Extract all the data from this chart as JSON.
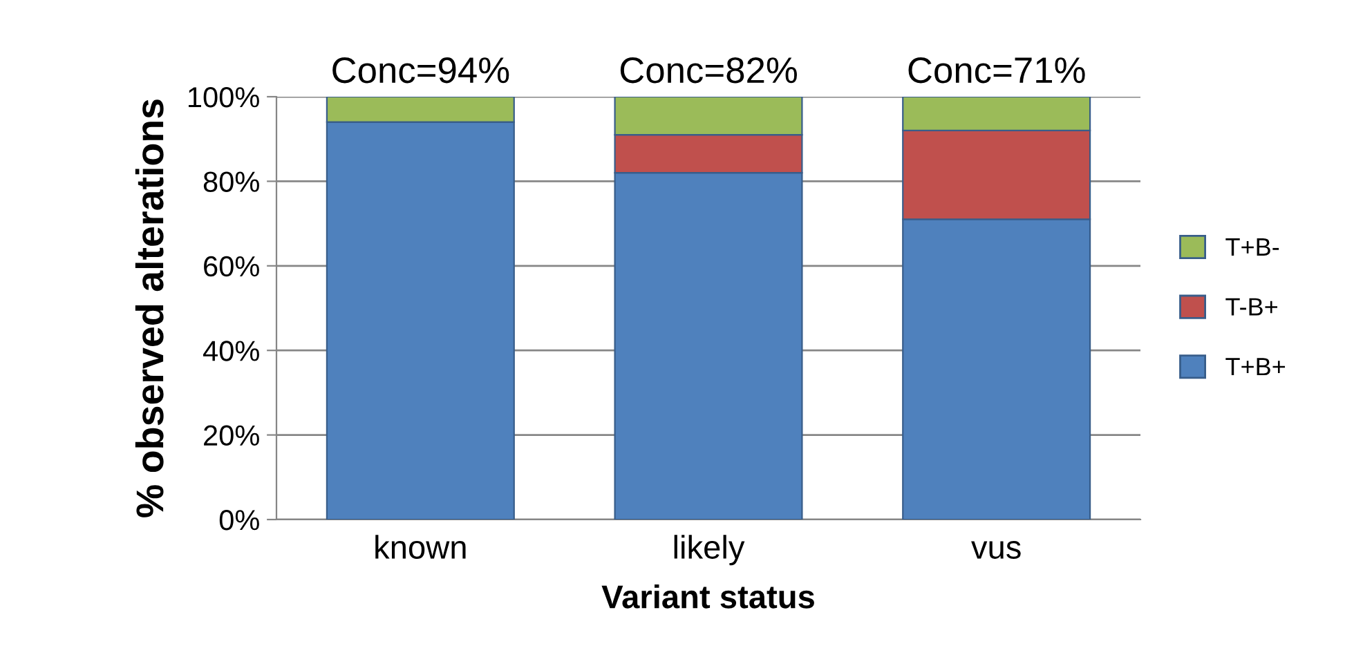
{
  "chart_data": {
    "type": "bar",
    "stacked": true,
    "xlabel": "Variant status",
    "ylabel": "% observed alterations",
    "categories": [
      "known",
      "likely",
      "vus"
    ],
    "series": [
      {
        "name": "T+B+",
        "color": "#4f81bd",
        "values": [
          94,
          82,
          71
        ]
      },
      {
        "name": "T-B+",
        "color": "#c0504d",
        "values": [
          0,
          9,
          21
        ]
      },
      {
        "name": "T+B-",
        "color": "#9bbb59",
        "values": [
          6,
          9,
          8
        ]
      }
    ],
    "annotations": [
      "Conc=94%",
      "Conc=82%",
      "Conc=71%"
    ],
    "ylim": [
      0,
      100
    ],
    "yticks": [
      {
        "value": 0,
        "label": "0%"
      },
      {
        "value": 20,
        "label": "20%"
      },
      {
        "value": 40,
        "label": "40%"
      },
      {
        "value": 60,
        "label": "60%"
      },
      {
        "value": 80,
        "label": "80%"
      },
      {
        "value": 100,
        "label": "100%"
      }
    ],
    "grid": "y",
    "legend": "right"
  }
}
